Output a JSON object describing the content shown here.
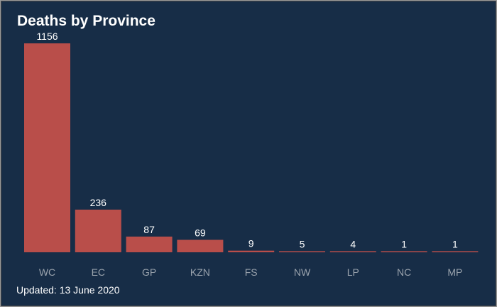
{
  "chart_data": {
    "type": "bar",
    "title": "Deaths by Province",
    "categories": [
      "WC",
      "EC",
      "GP",
      "KZN",
      "FS",
      "NW",
      "LP",
      "NC",
      "MP"
    ],
    "values": [
      1156,
      236,
      87,
      69,
      9,
      5,
      4,
      1,
      1
    ],
    "xlabel": "",
    "ylabel": "",
    "ylim": [
      0,
      1156
    ],
    "grid": false,
    "data_labels": true
  },
  "footnote": "Updated: 13 June 2020",
  "colors": {
    "background": "#172d47",
    "bar": "#b94e4a",
    "title": "#ffffff",
    "tick_label": "#9aa3ad"
  }
}
